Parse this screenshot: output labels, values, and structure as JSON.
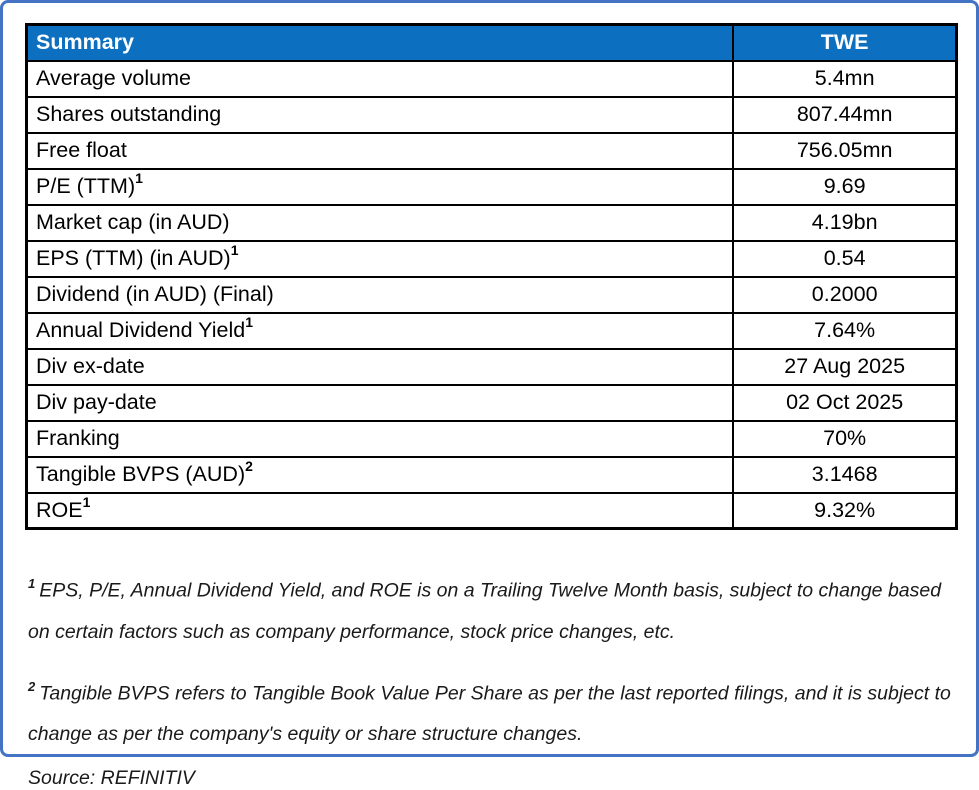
{
  "colors": {
    "frame_border": "#4472C4",
    "header_bg": "#0C6FBF",
    "table_border": "#000000"
  },
  "table": {
    "header": {
      "label": "Summary",
      "value": "TWE"
    },
    "rows": [
      {
        "label": "Average volume",
        "sup": "",
        "value": "5.4mn"
      },
      {
        "label": "Shares outstanding",
        "sup": "",
        "value": "807.44mn"
      },
      {
        "label": "Free float",
        "sup": "",
        "value": "756.05mn"
      },
      {
        "label": "P/E (TTM)",
        "sup": "1",
        "value": "9.69"
      },
      {
        "label": "Market cap (in AUD)",
        "sup": "",
        "value": "4.19bn"
      },
      {
        "label": "EPS (TTM) (in AUD)",
        "sup": "1",
        "value": "0.54"
      },
      {
        "label": "Dividend (in AUD) (Final)",
        "sup": "",
        "value": "0.2000"
      },
      {
        "label": "Annual Dividend Yield",
        "sup": "1",
        "value": "7.64%"
      },
      {
        "label": "Div ex-date",
        "sup": "",
        "value": "27 Aug 2025"
      },
      {
        "label": "Div pay-date",
        "sup": "",
        "value": "02 Oct 2025"
      },
      {
        "label": "Franking",
        "sup": "",
        "value": "70%"
      },
      {
        "label": "Tangible BVPS (AUD)",
        "sup": "2",
        "value": "3.1468"
      },
      {
        "label": "ROE",
        "sup": "1",
        "value": "9.32%"
      }
    ]
  },
  "footnotes": [
    {
      "sup": "1",
      "text": "EPS, P/E, Annual Dividend Yield, and ROE is on a Trailing Twelve Month basis, subject to change based on certain factors such as company performance, stock price changes, etc."
    },
    {
      "sup": "2",
      "text": "Tangible BVPS refers to Tangible Book Value Per Share as per the last reported filings, and it is subject to change as per the company's equity or share structure changes."
    }
  ],
  "source": "Source: REFINITIV"
}
